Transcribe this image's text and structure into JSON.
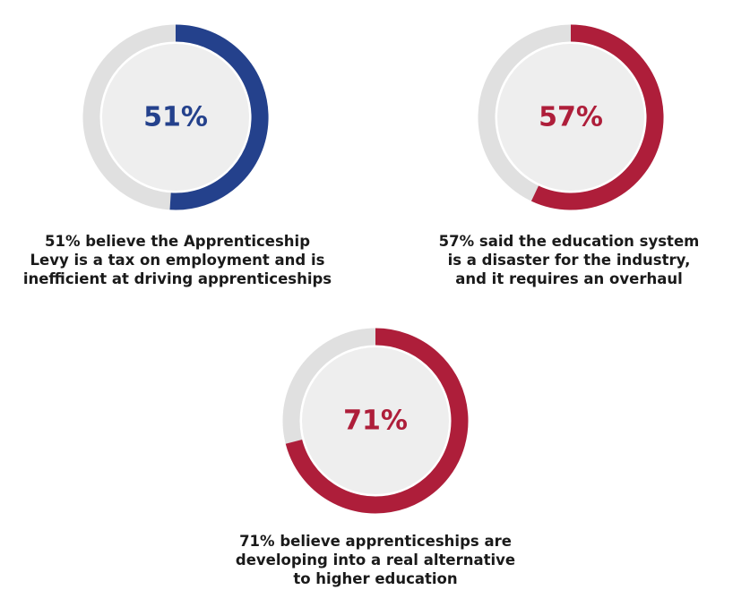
{
  "colors": {
    "blue": "#24418c",
    "red": "#ae1e3a",
    "track": "#e0e0e0",
    "inner": "#eeeeee"
  },
  "chart_data": [
    {
      "type": "pie",
      "variant": "donut",
      "value": 51,
      "max": 100,
      "label": "51%",
      "color": "#24418c",
      "caption": "51% believe the Apprenticeship Levy is a tax on employment and is inefficient at driving apprenticeships"
    },
    {
      "type": "pie",
      "variant": "donut",
      "value": 57,
      "max": 100,
      "label": "57%",
      "color": "#ae1e3a",
      "caption": "57% said the education system is a disaster for the industry, and it requires an overhaul"
    },
    {
      "type": "pie",
      "variant": "donut",
      "value": 71,
      "max": 100,
      "label": "71%",
      "color": "#ae1e3a",
      "caption": "71% believe apprenticeships are developing into a real alternative to higher education"
    }
  ]
}
